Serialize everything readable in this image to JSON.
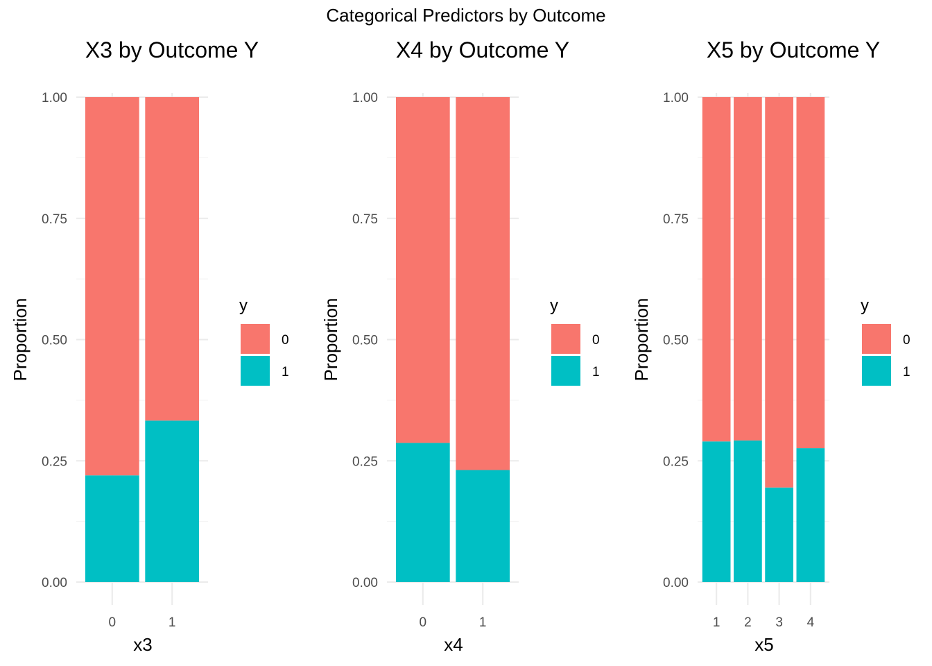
{
  "figure": {
    "title": "Categorical Predictors by Outcome"
  },
  "colors": {
    "y0": "#F8766D",
    "y1": "#00BFC4"
  },
  "chart_data": [
    {
      "type": "bar",
      "stacked": true,
      "title": "X3 by Outcome Y",
      "xlabel": "x3",
      "ylabel": "Proportion",
      "ylim": [
        0,
        1
      ],
      "yticks": [
        "0.00",
        "0.25",
        "0.50",
        "0.75",
        "1.00"
      ],
      "categories": [
        "0",
        "1"
      ],
      "series": [
        {
          "name": "1",
          "values": [
            0.22,
            0.333
          ]
        },
        {
          "name": "0",
          "values": [
            0.78,
            0.667
          ]
        }
      ],
      "legend": {
        "title": "y",
        "entries": [
          "0",
          "1"
        ],
        "position": "right"
      },
      "grid": true
    },
    {
      "type": "bar",
      "stacked": true,
      "title": "X4 by Outcome Y",
      "xlabel": "x4",
      "ylabel": "Proportion",
      "ylim": [
        0,
        1
      ],
      "yticks": [
        "0.00",
        "0.25",
        "0.50",
        "0.75",
        "1.00"
      ],
      "categories": [
        "0",
        "1"
      ],
      "series": [
        {
          "name": "1",
          "values": [
            0.287,
            0.231
          ]
        },
        {
          "name": "0",
          "values": [
            0.713,
            0.769
          ]
        }
      ],
      "legend": {
        "title": "y",
        "entries": [
          "0",
          "1"
        ],
        "position": "right"
      },
      "grid": true
    },
    {
      "type": "bar",
      "stacked": true,
      "title": "X5 by Outcome Y",
      "xlabel": "x5",
      "ylabel": "Proportion",
      "ylim": [
        0,
        1
      ],
      "yticks": [
        "0.00",
        "0.25",
        "0.50",
        "0.75",
        "1.00"
      ],
      "categories": [
        "1",
        "2",
        "3",
        "4"
      ],
      "series": [
        {
          "name": "1",
          "values": [
            0.29,
            0.292,
            0.195,
            0.276
          ]
        },
        {
          "name": "0",
          "values": [
            0.71,
            0.708,
            0.805,
            0.724
          ]
        }
      ],
      "legend": {
        "title": "y",
        "entries": [
          "0",
          "1"
        ],
        "position": "right"
      },
      "grid": true
    }
  ]
}
